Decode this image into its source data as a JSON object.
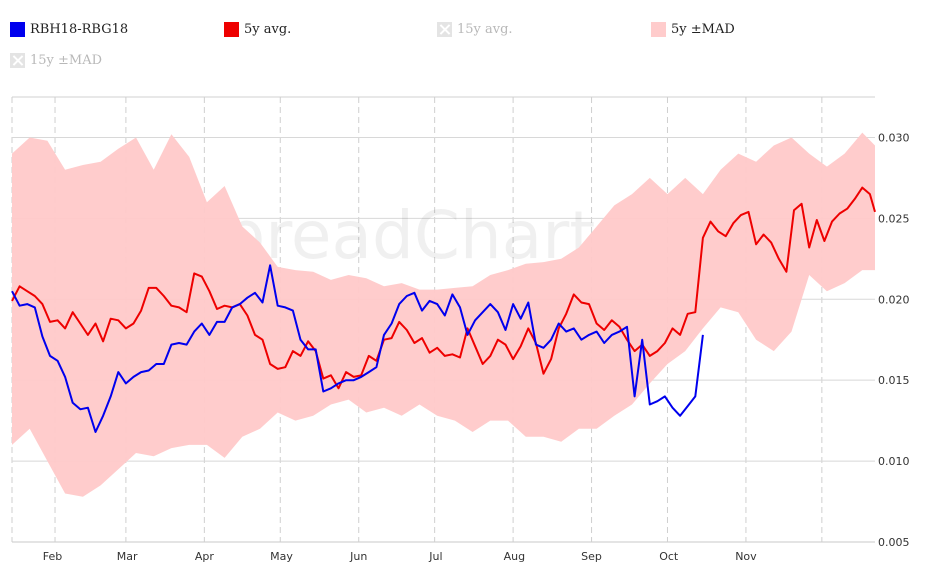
{
  "legend": [
    {
      "label": "RBH18-RBG18",
      "color": "#0000ee",
      "enabled": true
    },
    {
      "label": "5y avg.",
      "color": "#ee0000",
      "enabled": true
    },
    {
      "label": "15y avg.",
      "color": "#cccccc",
      "enabled": false
    },
    {
      "label": "5y ±MAD",
      "color": "#ffcccc",
      "enabled": true
    },
    {
      "label": "15y ±MAD",
      "color": "#cccccc",
      "enabled": false
    }
  ],
  "watermark": "© SpreadCharts.com",
  "chart_data": {
    "type": "line",
    "x_unit": "day of year",
    "x_months": [
      "Feb",
      "Mar",
      "Apr",
      "May",
      "Jun",
      "Jul",
      "Aug",
      "Sep",
      "Oct",
      "Nov"
    ],
    "xlim": [
      0,
      341
    ],
    "ylim": [
      0.005,
      0.0325
    ],
    "y_ticks": [
      "0.005",
      "0.010",
      "0.015",
      "0.020",
      "0.025",
      "0.030"
    ],
    "grid": true,
    "legend_position": "top",
    "series": [
      {
        "name": "5y ±MAD",
        "kind": "band",
        "color": "#ffc9c9",
        "x": [
          0,
          7,
          14,
          21,
          28,
          35,
          42,
          49,
          56,
          63,
          70,
          77,
          84,
          91,
          98,
          105,
          112,
          119,
          126,
          133,
          140,
          147,
          154,
          161,
          168,
          175,
          182,
          189,
          196,
          203,
          210,
          217,
          224,
          231,
          238,
          245,
          252,
          259,
          266,
          273,
          280,
          287,
          294,
          301,
          308,
          315,
          322,
          329,
          336,
          341
        ],
        "upper": [
          0.029,
          0.03,
          0.0298,
          0.028,
          0.0283,
          0.0285,
          0.0293,
          0.03,
          0.028,
          0.0302,
          0.0288,
          0.026,
          0.027,
          0.0245,
          0.0235,
          0.022,
          0.0218,
          0.0217,
          0.0212,
          0.0215,
          0.0213,
          0.0208,
          0.021,
          0.0206,
          0.0206,
          0.0207,
          0.0208,
          0.0215,
          0.0218,
          0.0222,
          0.0223,
          0.0225,
          0.0232,
          0.0245,
          0.0258,
          0.0265,
          0.0275,
          0.0265,
          0.0275,
          0.0265,
          0.028,
          0.029,
          0.0285,
          0.0295,
          0.03,
          0.029,
          0.0282,
          0.029,
          0.0303,
          0.0295
        ],
        "lower": [
          0.011,
          0.012,
          0.01,
          0.008,
          0.0078,
          0.0085,
          0.0095,
          0.0105,
          0.0103,
          0.0108,
          0.011,
          0.011,
          0.0102,
          0.0115,
          0.012,
          0.013,
          0.0125,
          0.0128,
          0.0135,
          0.0138,
          0.013,
          0.0133,
          0.0128,
          0.0135,
          0.0128,
          0.0125,
          0.0118,
          0.0125,
          0.0125,
          0.0115,
          0.0115,
          0.0112,
          0.012,
          0.012,
          0.0128,
          0.0135,
          0.0148,
          0.016,
          0.0168,
          0.0182,
          0.0195,
          0.0192,
          0.0175,
          0.0168,
          0.018,
          0.0215,
          0.0205,
          0.021,
          0.0218,
          0.0218
        ]
      },
      {
        "name": "5y avg.",
        "kind": "line",
        "color": "#ee0000",
        "x": [
          0,
          3,
          6,
          9,
          12,
          15,
          18,
          21,
          24,
          27,
          30,
          33,
          36,
          39,
          42,
          45,
          48,
          51,
          54,
          57,
          60,
          63,
          66,
          69,
          72,
          75,
          78,
          81,
          84,
          87,
          90,
          93,
          96,
          99,
          102,
          105,
          108,
          111,
          114,
          117,
          120,
          123,
          126,
          129,
          132,
          135,
          138,
          141,
          144,
          147,
          150,
          153,
          156,
          159,
          162,
          165,
          168,
          171,
          174,
          177,
          180,
          183,
          186,
          189,
          192,
          195,
          198,
          201,
          204,
          207,
          210,
          213,
          216,
          219,
          222,
          225,
          228,
          231,
          234,
          237,
          240,
          243,
          246,
          249,
          252,
          255,
          258,
          261,
          264,
          267,
          270,
          273,
          276,
          279,
          282,
          285,
          288,
          291,
          294,
          297,
          300,
          303,
          306,
          309,
          312,
          315,
          318,
          321,
          324,
          327,
          330,
          333,
          336,
          339,
          341
        ],
        "y": [
          0.0199,
          0.0208,
          0.0205,
          0.0202,
          0.0197,
          0.0186,
          0.0187,
          0.0182,
          0.0192,
          0.0185,
          0.0178,
          0.0185,
          0.0174,
          0.0188,
          0.0187,
          0.0182,
          0.0185,
          0.0193,
          0.0207,
          0.0207,
          0.0202,
          0.0196,
          0.0195,
          0.0192,
          0.0216,
          0.0214,
          0.0205,
          0.0194,
          0.0196,
          0.0195,
          0.0197,
          0.019,
          0.0178,
          0.0175,
          0.016,
          0.0157,
          0.0158,
          0.0168,
          0.0165,
          0.0174,
          0.0168,
          0.0151,
          0.0153,
          0.0145,
          0.0155,
          0.0152,
          0.0153,
          0.0165,
          0.0162,
          0.0175,
          0.0176,
          0.0186,
          0.0181,
          0.0173,
          0.0176,
          0.0167,
          0.017,
          0.0165,
          0.0166,
          0.0164,
          0.0182,
          0.0171,
          0.016,
          0.0165,
          0.0175,
          0.0172,
          0.0163,
          0.0171,
          0.0182,
          0.0173,
          0.0154,
          0.0163,
          0.0182,
          0.0191,
          0.0203,
          0.0198,
          0.0197,
          0.0185,
          0.0181,
          0.0187,
          0.0183,
          0.0175,
          0.0168,
          0.0172,
          0.0165,
          0.0168,
          0.0173,
          0.0182,
          0.0178,
          0.0191,
          0.0192,
          0.0193,
          0.0186,
          0.0198,
          0.0202,
          0.0194,
          0.0177,
          0.0183,
          0.0188,
          0.0205,
          0.0201,
          0.0233,
          0.0215,
          0.0231,
          0.0232,
          0.0236,
          0.0247,
          0.0239,
          0.0236,
          0.0244,
          0.0254,
          0.0256,
          0.0232,
          0.0238,
          0.0226
        ],
        "x_extra": [
          273,
          276,
          279,
          282,
          285,
          288,
          291,
          294,
          297,
          300,
          303,
          306,
          309,
          312,
          315,
          318,
          321,
          324,
          327,
          330,
          333,
          336,
          339,
          341
        ],
        "y_extra": [
          0.0238,
          0.0248,
          0.0242,
          0.0239,
          0.0247,
          0.0252,
          0.0254,
          0.0234,
          0.024,
          0.0235,
          0.0225,
          0.0217,
          0.0255,
          0.0259,
          0.0232,
          0.0249,
          0.0236,
          0.0248,
          0.0253,
          0.0256,
          0.0262,
          0.0269,
          0.0265,
          0.0254
        ]
      },
      {
        "name": "RBH18-RBG18",
        "kind": "line",
        "color": "#0000ee",
        "x": [
          0,
          3,
          6,
          9,
          12,
          15,
          18,
          21,
          24,
          27,
          30,
          33,
          36,
          39,
          42,
          45,
          48,
          51,
          54,
          57,
          60,
          63,
          66,
          69,
          72,
          75,
          78,
          81,
          84,
          87,
          90,
          93,
          96,
          99,
          102,
          105,
          108,
          111,
          114,
          117,
          120,
          123,
          126,
          129,
          132,
          135,
          138,
          141,
          144,
          147,
          150,
          153,
          156,
          159,
          162,
          165,
          168,
          171,
          174,
          177,
          180,
          183,
          186,
          189,
          192,
          195,
          198,
          201,
          204,
          207,
          210,
          213,
          216,
          219,
          222,
          225,
          228,
          231,
          234,
          237,
          240,
          243,
          246,
          249,
          252,
          255,
          258,
          261,
          264,
          267,
          270,
          273
        ],
        "y": [
          0.0205,
          0.0196,
          0.0197,
          0.0195,
          0.0177,
          0.0165,
          0.0162,
          0.0152,
          0.0136,
          0.0132,
          0.0133,
          0.0118,
          0.0128,
          0.014,
          0.0155,
          0.0148,
          0.0152,
          0.0155,
          0.0156,
          0.016,
          0.016,
          0.0172,
          0.0173,
          0.0172,
          0.018,
          0.0185,
          0.0178,
          0.0186,
          0.0186,
          0.0195,
          0.0197,
          0.0201,
          0.0204,
          0.0198,
          0.0221,
          0.0196,
          0.0195,
          0.0193,
          0.0175,
          0.0169,
          0.0169,
          0.0143,
          0.0145,
          0.0148,
          0.015,
          0.015,
          0.0152,
          0.0155,
          0.0158,
          0.0178,
          0.0185,
          0.0197,
          0.0202,
          0.0204,
          0.0193,
          0.0199,
          0.0197,
          0.019,
          0.0203,
          0.0195,
          0.0178,
          0.0187,
          0.0192,
          0.0197,
          0.0192,
          0.0181,
          0.0197,
          0.0188,
          0.0198,
          0.0172,
          0.017,
          0.0175,
          0.0185,
          0.018,
          0.0182,
          0.0175,
          0.0178,
          0.018,
          0.0173,
          0.0178,
          0.018,
          0.0183,
          0.014,
          0.0175,
          0.0135,
          0.0137,
          0.014,
          0.0133,
          0.0128,
          0.0134,
          0.014,
          0.0178
        ]
      }
    ]
  }
}
